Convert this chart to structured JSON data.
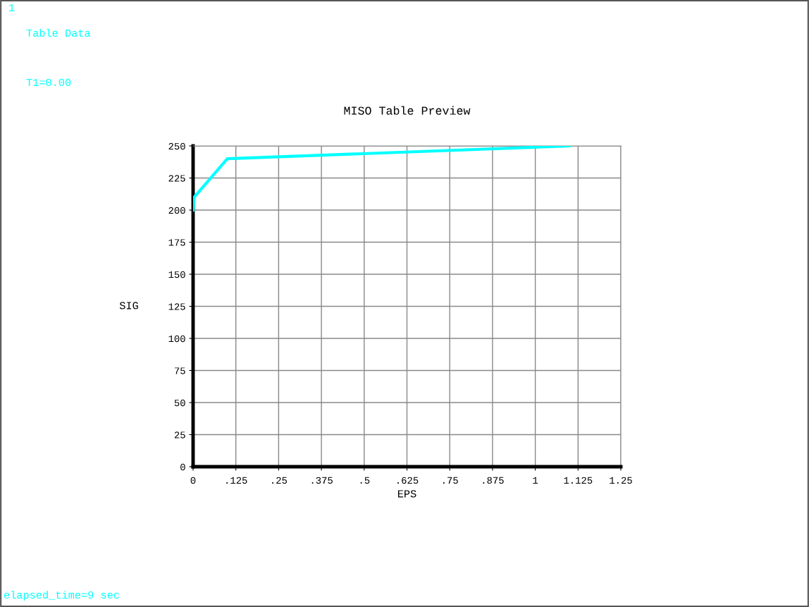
{
  "chart_data": {
    "type": "line",
    "title": "MISO Table Preview",
    "xlabel": "EPS",
    "ylabel": "SIG",
    "x": [
      0,
      0.003,
      0.1,
      1.1
    ],
    "series": [
      {
        "color": "#00ffff",
        "values": [
          200,
          210,
          240,
          250
        ]
      }
    ],
    "xlim": [
      0,
      1.25
    ],
    "ylim": [
      0,
      250
    ],
    "xticks": [
      0,
      {
        "value": 0.125,
        "label": ".125"
      },
      {
        "value": 0.25,
        "label": ".25"
      },
      {
        "value": 0.375,
        "label": ".375"
      },
      {
        "value": 0.5,
        "label": ".5"
      },
      {
        "value": 0.625,
        "label": ".625"
      },
      {
        "value": 0.75,
        "label": ".75"
      },
      {
        "value": 0.875,
        "label": ".875"
      },
      1,
      {
        "value": 1.125,
        "label": "1.125"
      },
      1.25
    ],
    "yticks": [
      0,
      25,
      50,
      75,
      100,
      125,
      150,
      175,
      200,
      225,
      250
    ],
    "grid": true,
    "marker": "none",
    "line_style": "solid",
    "annotations": [
      "1",
      "Table Data",
      "T1=0.00",
      "elapsed_time=9 sec"
    ]
  }
}
